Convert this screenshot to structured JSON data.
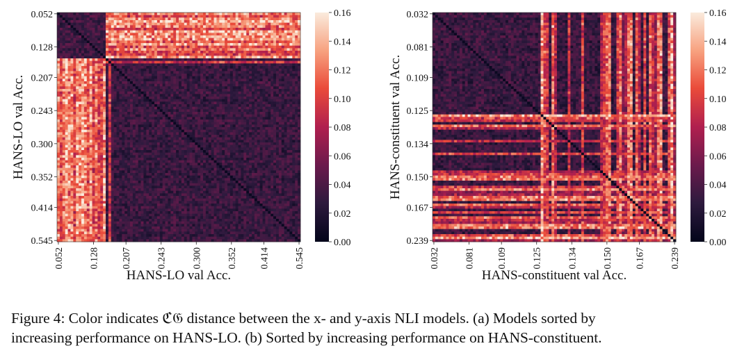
{
  "colormap": {
    "name": "rocket",
    "stops": [
      "#03051a",
      "#2e1a3e",
      "#6a1a4c",
      "#b01f4f",
      "#ea4b3a",
      "#f7a07e",
      "#faebdd"
    ]
  },
  "chart_data": [
    {
      "type": "heatmap",
      "panel": "a",
      "xlabel": "HANS-LO val Acc.",
      "ylabel": "HANS-LO val Acc.",
      "xticks": [
        "0.052",
        "0.128",
        "0.207",
        "0.243",
        "0.300",
        "0.352",
        "0.414",
        "0.545"
      ],
      "yticks": [
        "0.052",
        "0.128",
        "0.207",
        "0.243",
        "0.300",
        "0.352",
        "0.414",
        "0.545"
      ],
      "n_models": 90,
      "colorbar": {
        "min": 0.0,
        "max": 0.16,
        "ticks": [
          "0.00",
          "0.02",
          "0.04",
          "0.06",
          "0.08",
          "0.10",
          "0.12",
          "0.14",
          "0.16"
        ]
      },
      "pattern": "first ~18 models form bright rows/columns (0.10-0.16) against all others; the rest is dark (0.00-0.03)"
    },
    {
      "type": "heatmap",
      "panel": "b",
      "xlabel": "HANS-constituent val Acc.",
      "ylabel": "HANS-constituent val Acc.",
      "xticks": [
        "0.032",
        "0.081",
        "0.109",
        "0.125",
        "0.134",
        "0.150",
        "0.167",
        "0.239"
      ],
      "yticks": [
        "0.032",
        "0.081",
        "0.109",
        "0.125",
        "0.134",
        "0.150",
        "0.167",
        "0.239"
      ],
      "n_models": 90,
      "colorbar": {
        "min": 0.0,
        "max": 0.16,
        "ticks": [
          "0.00",
          "0.02",
          "0.04",
          "0.06",
          "0.08",
          "0.10",
          "0.12",
          "0.14",
          "0.16"
        ]
      },
      "pattern": "scattered outlier models (mostly at higher accuracy) form bright stripes; background dark (0.00-0.03)"
    }
  ],
  "caption": {
    "line1": "Figure 4: Color indicates ℭ𝔊 distance between the x- and y-axis NLI models. (a) Models sorted by",
    "line2": "increasing performance on HANS-LO. (b) Sorted by increasing performance on HANS-constituent."
  }
}
